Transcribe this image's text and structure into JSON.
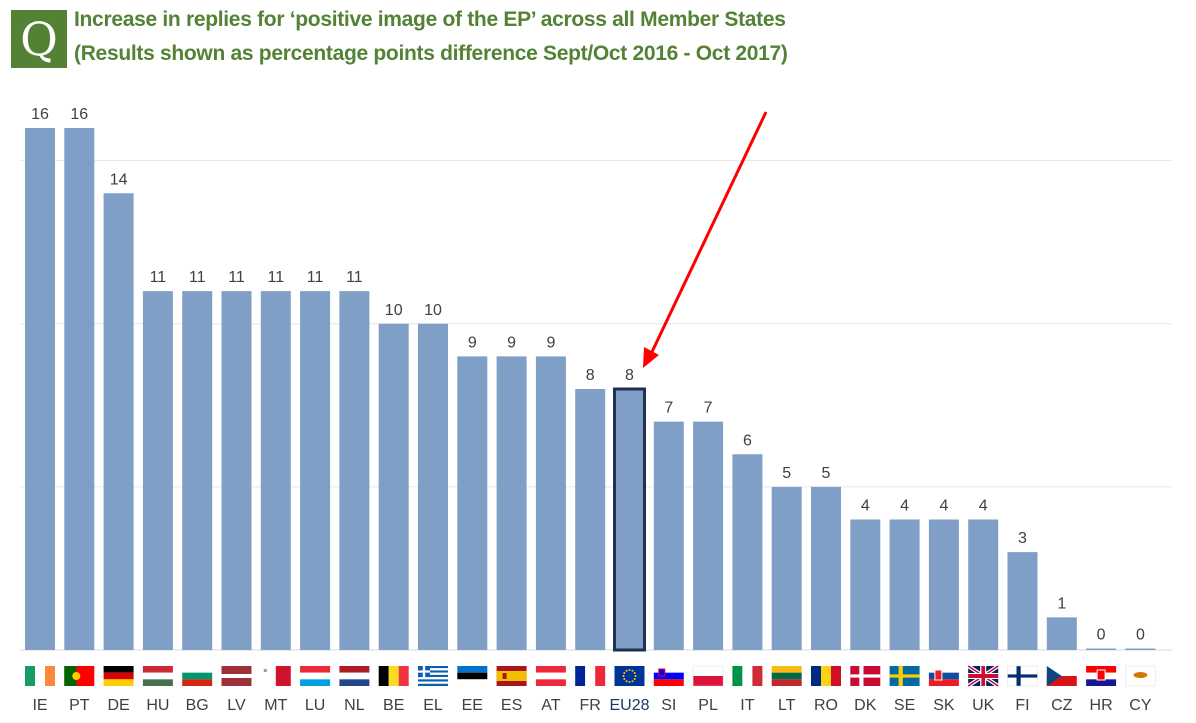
{
  "header": {
    "badge": "Q",
    "title_line1": "Increase in replies for ‘positive image of the EP’ across all Member States",
    "title_line2": "(Results shown as percentage points difference Sept/Oct 2016 - Oct 2017)"
  },
  "colors": {
    "bar": "#7f9fc6",
    "highlight_border": "#1f3050",
    "title": "#548235",
    "arrow": "#ff0000",
    "gridline": "#e6e6e6",
    "label": "#404040",
    "eu_label": "#1f3864"
  },
  "chart_data": {
    "type": "bar",
    "title": "Increase in replies for ‘positive image of the EP’ across all Member States",
    "subtitle": "(Results shown as percentage points difference Sept/Oct 2016 - Oct 2017)",
    "categories": [
      "IE",
      "PT",
      "DE",
      "HU",
      "BG",
      "LV",
      "MT",
      "LU",
      "NL",
      "BE",
      "EL",
      "EE",
      "ES",
      "AT",
      "FR",
      "EU28",
      "SI",
      "PL",
      "IT",
      "LT",
      "RO",
      "DK",
      "SE",
      "SK",
      "UK",
      "FI",
      "CZ",
      "HR",
      "CY"
    ],
    "values": [
      16,
      16,
      14,
      11,
      11,
      11,
      11,
      11,
      11,
      10,
      10,
      9,
      9,
      9,
      8,
      8,
      7,
      7,
      6,
      5,
      5,
      4,
      4,
      4,
      4,
      3,
      1,
      0,
      0
    ],
    "highlight": "EU28",
    "ylim": [
      0,
      16
    ],
    "grid": true,
    "flag_icons": [
      "ie-flag-icon",
      "pt-flag-icon",
      "de-flag-icon",
      "hu-flag-icon",
      "bg-flag-icon",
      "lv-flag-icon",
      "mt-flag-icon",
      "lu-flag-icon",
      "nl-flag-icon",
      "be-flag-icon",
      "el-flag-icon",
      "ee-flag-icon",
      "es-flag-icon",
      "at-flag-icon",
      "fr-flag-icon",
      "eu-flag-icon",
      "si-flag-icon",
      "pl-flag-icon",
      "it-flag-icon",
      "lt-flag-icon",
      "ro-flag-icon",
      "dk-flag-icon",
      "se-flag-icon",
      "sk-flag-icon",
      "uk-flag-icon",
      "fi-flag-icon",
      "cz-flag-icon",
      "hr-flag-icon",
      "cy-flag-icon"
    ]
  }
}
